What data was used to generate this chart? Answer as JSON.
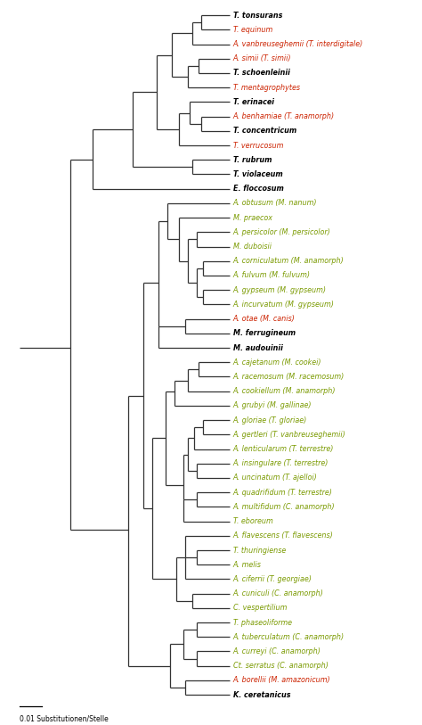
{
  "taxa": [
    {
      "name": "T. tonsurans",
      "color": "black",
      "bold": true,
      "y": 1
    },
    {
      "name": "T. equinum",
      "color": "#cc2200",
      "bold": false,
      "y": 2
    },
    {
      "name": "A. vanbreuseghemii (T. interdigitale)",
      "color": "#cc2200",
      "bold": false,
      "y": 3
    },
    {
      "name": "A. simii (T. simii)",
      "color": "#cc2200",
      "bold": false,
      "y": 4
    },
    {
      "name": "T. schoenleinii",
      "color": "black",
      "bold": true,
      "y": 5
    },
    {
      "name": "T. mentagrophytes",
      "color": "#cc2200",
      "bold": false,
      "y": 6
    },
    {
      "name": "T. erinacei",
      "color": "black",
      "bold": true,
      "y": 7
    },
    {
      "name": "A. benhamiae (T. anamorph)",
      "color": "#cc2200",
      "bold": false,
      "y": 8
    },
    {
      "name": "T. concentricum",
      "color": "black",
      "bold": true,
      "y": 9
    },
    {
      "name": "T. verrucosum",
      "color": "#cc2200",
      "bold": false,
      "y": 10
    },
    {
      "name": "T. rubrum",
      "color": "black",
      "bold": true,
      "y": 11
    },
    {
      "name": "T. violaceum",
      "color": "black",
      "bold": true,
      "y": 12
    },
    {
      "name": "E. floccosum",
      "color": "black",
      "bold": true,
      "y": 13
    },
    {
      "name": "A. obtusum (M. nanum)",
      "color": "#7a9a00",
      "bold": false,
      "y": 14
    },
    {
      "name": "M. praecox",
      "color": "#7a9a00",
      "bold": false,
      "y": 15
    },
    {
      "name": "A. persicolor (M. persicolor)",
      "color": "#7a9a00",
      "bold": false,
      "y": 16
    },
    {
      "name": "M. duboisii",
      "color": "#7a9a00",
      "bold": false,
      "y": 17
    },
    {
      "name": "A. corniculatum (M. anamorph)",
      "color": "#7a9a00",
      "bold": false,
      "y": 18
    },
    {
      "name": "A. fulvum (M. fulvum)",
      "color": "#7a9a00",
      "bold": false,
      "y": 19
    },
    {
      "name": "A. gypseum (M. gypseum)",
      "color": "#7a9a00",
      "bold": false,
      "y": 20
    },
    {
      "name": "A. incurvatum (M. gypseum)",
      "color": "#7a9a00",
      "bold": false,
      "y": 21
    },
    {
      "name": "A. otae (M. canis)",
      "color": "#cc2200",
      "bold": false,
      "y": 22
    },
    {
      "name": "M. ferrugineum",
      "color": "black",
      "bold": true,
      "y": 23
    },
    {
      "name": "M. audouinii",
      "color": "black",
      "bold": true,
      "y": 24
    },
    {
      "name": "A. cajetanum (M. cookei)",
      "color": "#7a9a00",
      "bold": false,
      "y": 25
    },
    {
      "name": "A. racemosum (M. racemosum)",
      "color": "#7a9a00",
      "bold": false,
      "y": 26
    },
    {
      "name": "A. cookiellum (M. anamorph)",
      "color": "#7a9a00",
      "bold": false,
      "y": 27
    },
    {
      "name": "A. grubyi (M. gallinae)",
      "color": "#7a9a00",
      "bold": false,
      "y": 28
    },
    {
      "name": "A. gloriae (T. gloriae)",
      "color": "#7a9a00",
      "bold": false,
      "y": 29
    },
    {
      "name": "A. gertleri (T. vanbreuseghemii)",
      "color": "#7a9a00",
      "bold": false,
      "y": 30
    },
    {
      "name": "A. lenticularum (T. terrestre)",
      "color": "#7a9a00",
      "bold": false,
      "y": 31
    },
    {
      "name": "A. insingulare (T. terrestre)",
      "color": "#7a9a00",
      "bold": false,
      "y": 32
    },
    {
      "name": "A. uncinatum (T. ajelloi)",
      "color": "#7a9a00",
      "bold": false,
      "y": 33
    },
    {
      "name": "A. quadrifidum (T. terrestre)",
      "color": "#7a9a00",
      "bold": false,
      "y": 34
    },
    {
      "name": "A. multifidum (C. anamorph)",
      "color": "#7a9a00",
      "bold": false,
      "y": 35
    },
    {
      "name": "T. eboreum",
      "color": "#7a9a00",
      "bold": false,
      "y": 36
    },
    {
      "name": "A. flavescens (T. flavescens)",
      "color": "#7a9a00",
      "bold": false,
      "y": 37
    },
    {
      "name": "T. thuringiense",
      "color": "#7a9a00",
      "bold": false,
      "y": 38
    },
    {
      "name": "A. melis",
      "color": "#7a9a00",
      "bold": false,
      "y": 39
    },
    {
      "name": "A. ciferrii (T. georgiae)",
      "color": "#7a9a00",
      "bold": false,
      "y": 40
    },
    {
      "name": "A. cuniculi (C. anamorph)",
      "color": "#7a9a00",
      "bold": false,
      "y": 41
    },
    {
      "name": "C. vespertilium",
      "color": "#7a9a00",
      "bold": false,
      "y": 42
    },
    {
      "name": "T. phaseoliforme",
      "color": "#7a9a00",
      "bold": false,
      "y": 43
    },
    {
      "name": "A. tuberculatum (C. anamorph)",
      "color": "#7a9a00",
      "bold": false,
      "y": 44
    },
    {
      "name": "A. curreyi (C. anamorph)",
      "color": "#7a9a00",
      "bold": false,
      "y": 45
    },
    {
      "name": "Ct. serratus (C. anamorph)",
      "color": "#7a9a00",
      "bold": false,
      "y": 46
    },
    {
      "name": "A. borellii (M. amazonicum)",
      "color": "#cc2200",
      "bold": false,
      "y": 47
    },
    {
      "name": "K. ceretanicus",
      "color": "black",
      "bold": true,
      "y": 48
    }
  ],
  "scale_bar_label": "0.01 Substitutionen/Stelle",
  "background_color": "white",
  "line_color": "#333333",
  "lw": 0.9
}
